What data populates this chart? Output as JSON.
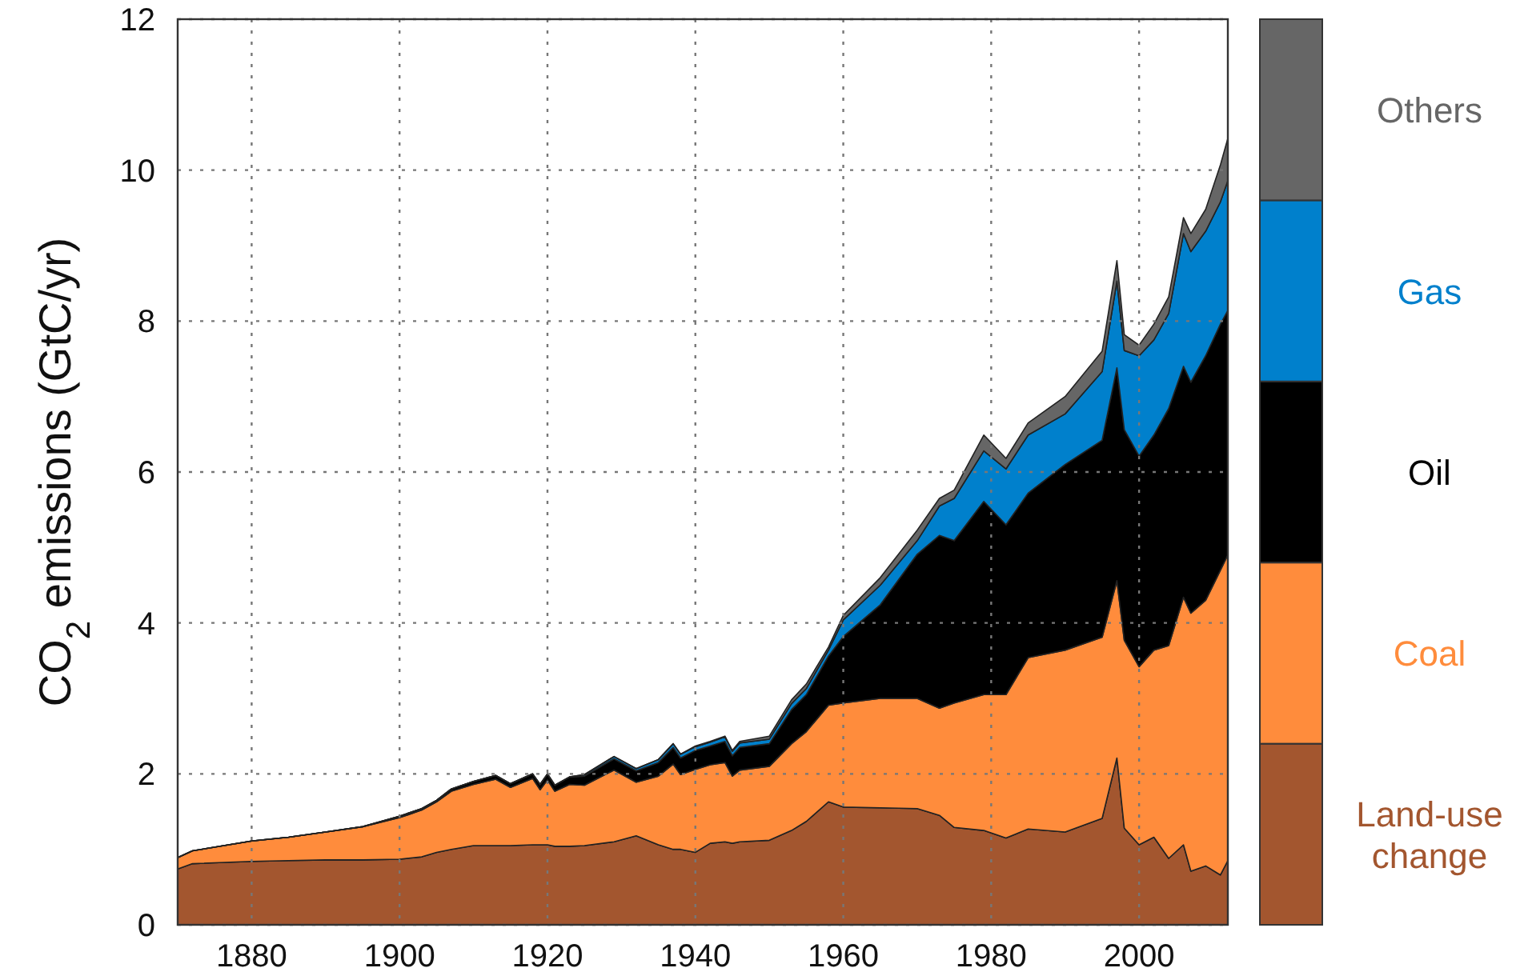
{
  "chart_data": {
    "type": "area",
    "stacked": true,
    "ylabel": "CO$_{2}$ emissions (GtC/yr)",
    "x": [
      1870,
      1872,
      1880,
      1885,
      1890,
      1895,
      1900,
      1903,
      1905,
      1907,
      1910,
      1913,
      1915,
      1918,
      1919,
      1920,
      1921,
      1923,
      1925,
      1929,
      1932,
      1935,
      1937,
      1938,
      1940,
      1942,
      1944,
      1945,
      1946,
      1950,
      1953,
      1955,
      1958,
      1960,
      1965,
      1970,
      1973,
      1975,
      1979,
      1982,
      1985,
      1990,
      1995,
      1997,
      1998,
      2000,
      2002,
      2004,
      2006,
      2007,
      2009,
      2011,
      2012
    ],
    "xlim": [
      1870,
      2012
    ],
    "xticks": [
      1880,
      1900,
      1920,
      1940,
      1960,
      1980,
      2000
    ],
    "ylim": [
      0,
      12
    ],
    "yticks": [
      0,
      2,
      4,
      6,
      8,
      10,
      12
    ],
    "grid": true,
    "legend": "right",
    "series": [
      {
        "name": "Land-use change",
        "color": "#a3562f",
        "values": [
          0.74,
          0.81,
          0.84,
          0.85,
          0.86,
          0.86,
          0.87,
          0.9,
          0.96,
          1.0,
          1.05,
          1.05,
          1.05,
          1.06,
          1.06,
          1.06,
          1.04,
          1.04,
          1.05,
          1.1,
          1.18,
          1.06,
          1.0,
          1.0,
          0.96,
          1.08,
          1.1,
          1.08,
          1.1,
          1.12,
          1.25,
          1.37,
          1.63,
          1.56,
          1.55,
          1.54,
          1.45,
          1.29,
          1.25,
          1.15,
          1.27,
          1.23,
          1.41,
          2.21,
          1.28,
          1.06,
          1.16,
          0.88,
          1.06,
          0.71,
          0.78,
          0.66,
          0.85
        ]
      },
      {
        "name": "Coal",
        "color": "#ff8c3c",
        "values": [
          0.15,
          0.17,
          0.27,
          0.31,
          0.37,
          0.44,
          0.55,
          0.62,
          0.67,
          0.77,
          0.81,
          0.88,
          0.77,
          0.88,
          0.73,
          0.86,
          0.73,
          0.82,
          0.8,
          0.95,
          0.71,
          0.91,
          1.13,
          0.99,
          1.1,
          1.04,
          1.05,
          0.89,
          0.95,
          0.98,
          1.15,
          1.19,
          1.28,
          1.38,
          1.45,
          1.46,
          1.42,
          1.65,
          1.8,
          1.9,
          2.27,
          2.41,
          2.4,
          2.35,
          2.49,
          2.36,
          2.48,
          2.82,
          3.28,
          3.42,
          3.52,
          4.04,
          4.05
        ]
      },
      {
        "name": "Oil",
        "color": "#000000",
        "values": [
          0,
          0,
          0,
          0,
          0,
          0,
          0.02,
          0.02,
          0.02,
          0.03,
          0.04,
          0.05,
          0.05,
          0.06,
          0.07,
          0.08,
          0.08,
          0.1,
          0.12,
          0.15,
          0.15,
          0.18,
          0.22,
          0.22,
          0.25,
          0.25,
          0.28,
          0.27,
          0.3,
          0.3,
          0.45,
          0.49,
          0.65,
          0.88,
          1.24,
          1.91,
          2.29,
          2.15,
          2.56,
          2.25,
          2.18,
          2.46,
          2.61,
          2.82,
          2.79,
          2.79,
          2.85,
          3.14,
          3.06,
          3.06,
          3.24,
          3.26,
          3.24
        ]
      },
      {
        "name": "Gas",
        "color": "#0080cc",
        "values": [
          0,
          0,
          0,
          0,
          0,
          0,
          0,
          0,
          0,
          0,
          0,
          0,
          0,
          0,
          0,
          0,
          0,
          0,
          0.02,
          0.03,
          0.03,
          0.04,
          0.05,
          0.05,
          0.05,
          0.05,
          0.06,
          0.06,
          0.06,
          0.06,
          0.08,
          0.08,
          0.08,
          0.22,
          0.26,
          0.18,
          0.39,
          0.56,
          0.67,
          0.74,
          0.77,
          0.67,
          0.91,
          1.15,
          1.05,
          1.33,
          1.26,
          1.26,
          1.76,
          1.73,
          1.65,
          1.62,
          1.72
        ]
      },
      {
        "name": "Others",
        "color": "#666666",
        "values": [
          0,
          0,
          0,
          0,
          0,
          0,
          0,
          0,
          0,
          0,
          0,
          0,
          0,
          0,
          0,
          0,
          0,
          0,
          0,
          0,
          0,
          0,
          0,
          0,
          0.01,
          0.01,
          0.01,
          0.01,
          0.02,
          0.04,
          0.05,
          0.06,
          0.04,
          0.06,
          0.1,
          0.14,
          0.1,
          0.11,
          0.21,
          0.14,
          0.16,
          0.23,
          0.27,
          0.27,
          0.21,
          0.14,
          0.21,
          0.22,
          0.21,
          0.24,
          0.29,
          0.49,
          0.56
        ]
      }
    ]
  }
}
